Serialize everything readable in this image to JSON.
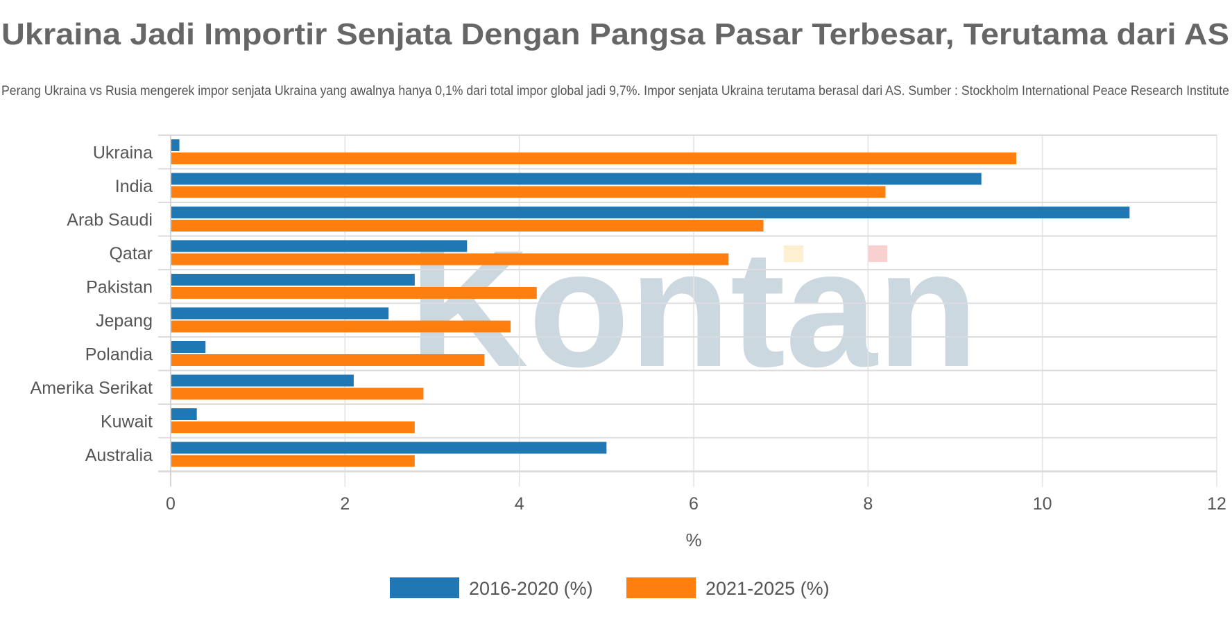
{
  "watermark": "Kontan",
  "colors": {
    "series1": "#1f77b4",
    "series2": "#ff7f0e",
    "text": "#555555",
    "grid": "#e3e3e3"
  },
  "chart_data": {
    "type": "bar",
    "orientation": "horizontal",
    "title": "Ukraina Jadi Importir Senjata Dengan Pangsa Pasar Terbesar, Terutama dari AS",
    "subtitle": "Perang Ukraina vs Rusia mengerek impor senjata Ukraina yang awalnya hanya 0,1% dari total impor global jadi 9,7%. Impor senjata Ukraina terutama berasal dari AS. Sumber : Stockholm International Peace Research Institute",
    "xlabel": "%",
    "ylabel": "",
    "xlim": [
      0,
      12
    ],
    "xticks": [
      "0",
      "2",
      "4",
      "6",
      "8",
      "10",
      "12"
    ],
    "grid": true,
    "legend_position": "bottom",
    "categories": [
      "Ukraina",
      "India",
      "Arab Saudi",
      "Qatar",
      "Pakistan",
      "Jepang",
      "Polandia",
      "Amerika Serikat",
      "Kuwait",
      "Australia"
    ],
    "series": [
      {
        "name": "2016-2020 (%)",
        "color": "#1f77b4",
        "values": [
          0.1,
          9.3,
          11.0,
          3.4,
          2.8,
          2.5,
          0.4,
          2.1,
          0.3,
          5.0
        ]
      },
      {
        "name": "2021-2025 (%)",
        "color": "#ff7f0e",
        "values": [
          9.7,
          8.2,
          6.8,
          6.4,
          4.2,
          3.9,
          3.6,
          2.9,
          2.8,
          2.8
        ]
      }
    ]
  }
}
